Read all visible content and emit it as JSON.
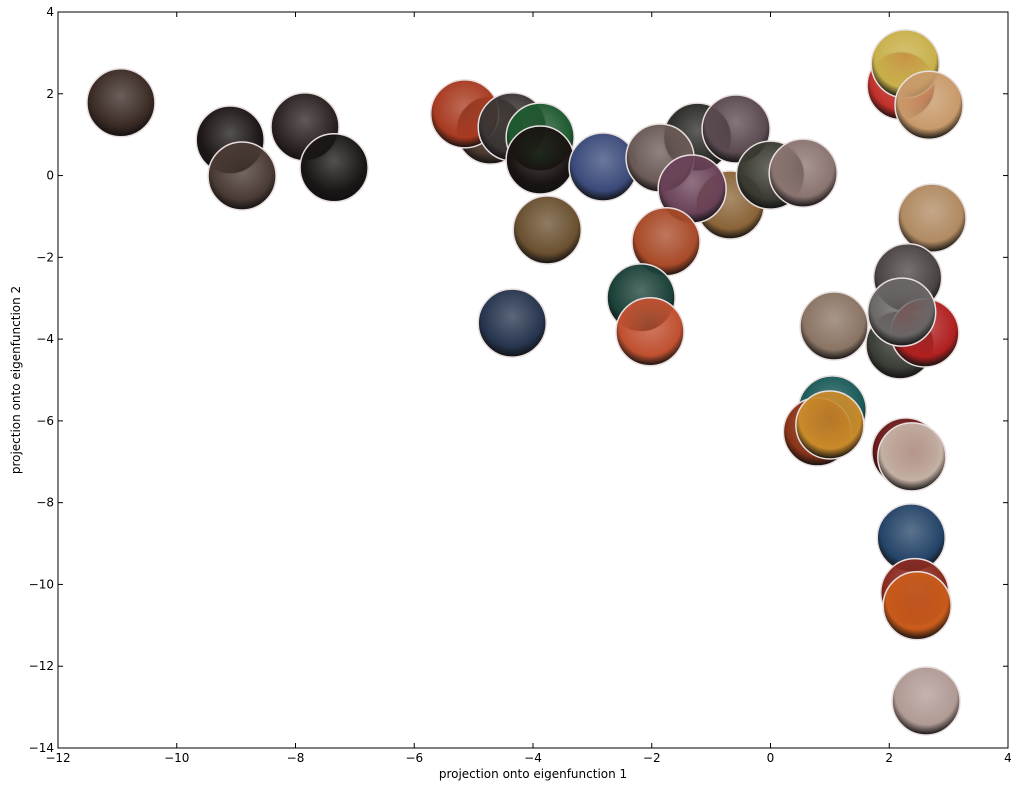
{
  "chart_data": {
    "type": "scatter",
    "xlabel": "projection onto eigenfunction 1",
    "ylabel": "projection onto eigenfunction 2",
    "xlim": [
      -12,
      4
    ],
    "ylim": [
      -14,
      4
    ],
    "xticks": [
      {
        "value": -12,
        "label": "−12"
      },
      {
        "value": -10,
        "label": "−10"
      },
      {
        "value": -8,
        "label": "−8"
      },
      {
        "value": -6,
        "label": "−6"
      },
      {
        "value": -4,
        "label": "−4"
      },
      {
        "value": -2,
        "label": "−2"
      },
      0,
      2,
      4
    ],
    "yticks": [
      {
        "value": -14,
        "label": "−14"
      },
      {
        "value": -12,
        "label": "−12"
      },
      {
        "value": -10,
        "label": "−10"
      },
      {
        "value": -8,
        "label": "−8"
      },
      {
        "value": -6,
        "label": "−6"
      },
      {
        "value": -4,
        "label": "−4"
      },
      {
        "value": -2,
        "label": "−2"
      },
      0,
      2,
      4
    ],
    "x": [
      -10.94,
      -9.1,
      -7.84,
      -8.9,
      -7.35,
      -4.72,
      -5.15,
      -4.35,
      -3.88,
      -3.88,
      -2.82,
      -1.23,
      -0.58,
      -1.86,
      -0.68,
      0,
      -1.32,
      0.55,
      -3.76,
      -1.76,
      -4.35,
      -2.18,
      -2.03,
      1.07,
      2.2,
      2.27,
      2.67,
      2.72,
      2.31,
      2.18,
      2.6,
      2.21,
      1.04,
      0.79,
      1.0,
      2.28,
      2.38,
      2.37,
      2.43,
      2.47,
      2.62
    ],
    "y": [
      1.78,
      0.87,
      1.19,
      -0.01,
      0.19,
      1.11,
      1.51,
      1.19,
      0.94,
      0.38,
      0.21,
      0.94,
      1.14,
      0.43,
      -0.72,
      0.01,
      -0.33,
      0.06,
      -1.33,
      -1.62,
      -3.61,
      -2.99,
      -3.82,
      -3.68,
      2.2,
      2.73,
      1.72,
      -1.04,
      -2.5,
      -4.14,
      -3.85,
      -3.34,
      -5.73,
      -6.27,
      -6.1,
      -6.76,
      -6.88,
      -8.86,
      -10.2,
      -10.52,
      -12.85
    ],
    "colors": [
      "#3a2a24",
      "#1c1716",
      "#2a2220",
      "#4a3a34",
      "#1a1616",
      "#4a3a30",
      "#a83a20",
      "#3a3634",
      "#1e5a30",
      "#1a1412",
      "#3a4a7a",
      "#2a2a26",
      "#5a4a50",
      "#6a5a56",
      "#8a6438",
      "#3a3a32",
      "#6a4258",
      "#8a7470",
      "#6a5030",
      "#a84a28",
      "#26344e",
      "#1a4038",
      "#c05030",
      "#8a7464",
      "#c0302a",
      "#c8b04a",
      "#c89a6a",
      "#b08a62",
      "#4a4444",
      "#3a3c36",
      "#b02020",
      "#6a6666",
      "#1a5a58",
      "#8a3418",
      "#c88a2a",
      "#6a1a1a",
      "#c4b0a4",
      "#244468",
      "#8a2a20",
      "#c85a1a",
      "#b09a94"
    ],
    "grid": false
  }
}
